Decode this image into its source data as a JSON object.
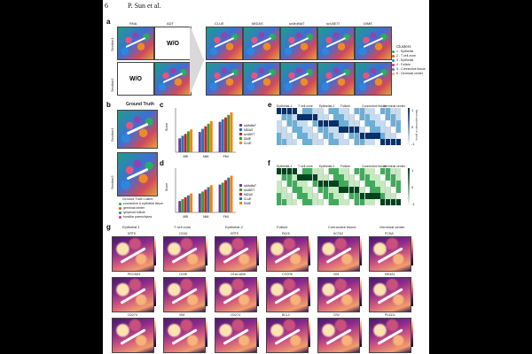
{
  "header": {
    "page_number": "6",
    "authors": "P. Sun et al."
  },
  "panel_labels": [
    "a",
    "b",
    "c",
    "d",
    "e",
    "f",
    "g"
  ],
  "panel_a": {
    "col_headers": [
      "RNA",
      "ADT"
    ],
    "row_labels": [
      "Section1",
      "Section2"
    ],
    "wo_text": "W/O",
    "method_headers": [
      "CLUE",
      "MIDAS",
      "scMoMaT",
      "scVAEIT",
      "DIME"
    ],
    "legend_title": "Clusters",
    "legend": [
      {
        "label": "1 - Epithelial",
        "color": "#2ca25f"
      },
      {
        "label": "2 - T cell zone",
        "color": "#e6550d"
      },
      {
        "label": "3 - Epithelial",
        "color": "#3182bd"
      },
      {
        "label": "4 - Follicle",
        "color": "#e7298a"
      },
      {
        "label": "5 - Connective tissue",
        "color": "#756bb1"
      },
      {
        "label": "6 - Germinal center",
        "color": "#fdae6b"
      }
    ]
  },
  "panel_b": {
    "title": "Ground Truth",
    "row_labels": [
      "Section1",
      "Section2"
    ],
    "legend_title": "Ground Truth Label",
    "legend": [
      {
        "label": "connective & epithelial tissue",
        "color": "#2ca25f"
      },
      {
        "label": "germinal center",
        "color": "#e6550d"
      },
      {
        "label": "lymphoid follicle",
        "color": "#3182bd"
      },
      {
        "label": "tonsillar parenchyma",
        "color": "#e7298a"
      }
    ]
  },
  "chart_c": {
    "ylabel": "Score",
    "categories": [
      "ARI",
      "NMI",
      "FMI"
    ],
    "legend": [
      "scMoMaT",
      "MIDAS",
      "scVAEIT",
      "DIME",
      "CLUE"
    ],
    "colors": [
      "#6a3d9a",
      "#1f78b4",
      "#e31a1c",
      "#33a02c",
      "#ff7f00"
    ],
    "values": [
      [
        0.22,
        0.26,
        0.29,
        0.33,
        0.36
      ],
      [
        0.32,
        0.37,
        0.41,
        0.45,
        0.49
      ],
      [
        0.48,
        0.52,
        0.55,
        0.59,
        0.63
      ]
    ],
    "ymax": 0.7
  },
  "chart_d": {
    "ylabel": "Score",
    "categories": [
      "ARI",
      "NMI",
      "FMI"
    ],
    "legend": [
      "scMoMaT",
      "scVAEIT",
      "MIDAS",
      "CLUE",
      "DIME"
    ],
    "colors": [
      "#6a3d9a",
      "#33a02c",
      "#e31a1c",
      "#1f78b4",
      "#ff7f00"
    ],
    "values": [
      [
        0.18,
        0.21,
        0.24,
        0.27,
        0.3
      ],
      [
        0.3,
        0.33,
        0.36,
        0.4,
        0.43
      ],
      [
        0.44,
        0.47,
        0.51,
        0.55,
        0.58
      ]
    ],
    "ymax": 0.7
  },
  "panel_e": {
    "groups": [
      "Epithelial-1",
      "T cell zone",
      "Epithelial-2",
      "Follicle",
      "Connective tissue",
      "Germinal center"
    ],
    "colorbar_label": "Mean expression in group",
    "cbar_ticks": [
      "1",
      "0",
      "-1"
    ]
  },
  "panel_f": {
    "groups": [
      "Epithelial-1",
      "T cell zone",
      "Epithelial-2",
      "Follicle",
      "Connective tissue",
      "Germinal center"
    ],
    "cbar_ticks": [
      "1",
      "0",
      "-1"
    ]
  },
  "panel_g": {
    "col_headers": [
      "Epithelial-1",
      "T cell zone",
      "Epithelial-2",
      "Follicle",
      "Connective tissue",
      "Germinal center"
    ],
    "genes": [
      [
        "KRT5",
        "CD4A",
        "KRT5",
        "PAX5",
        "ACTA2",
        "PCNA"
      ],
      [
        "PECAM1",
        "CD3E",
        "CEACAM6",
        "CXCR5",
        "VIM",
        "MS4A1"
      ],
      [
        "CD274",
        "VIM",
        "CD274",
        "BCL2",
        "CR2",
        "PDCD1"
      ]
    ]
  }
}
